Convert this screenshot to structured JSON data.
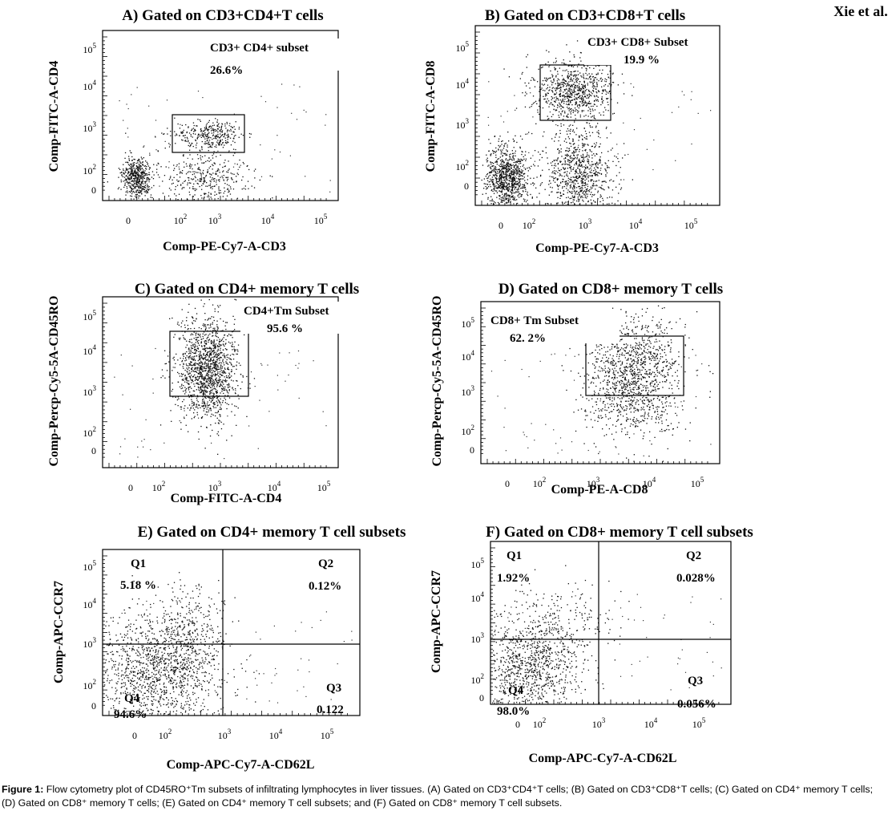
{
  "author": "Xie et al.",
  "caption": {
    "label": "Figure 1:",
    "text": "Flow cytometry plot of CD45RO⁺Tm subsets of infiltrating lymphocytes in liver tissues. (A) Gated on CD3⁺CD4⁺T cells; (B) Gated on CD3⁺CD8⁺T cells; (C) Gated on CD4⁺ memory T cells; (D) Gated on CD8⁺ memory T cells; (E) Gated on CD4⁺ memory T cell subsets; and (F) Gated on CD8⁺ memory T cell subsets."
  },
  "chart_data": [
    {
      "type": "scatter",
      "title": "A) Gated on CD3+CD4+T cells",
      "xlabel": "Comp-PE-Cy7-A-CD3",
      "ylabel": "Comp-FITC-A-CD4",
      "x_ticks": [
        "0",
        "10²",
        "10³",
        "10⁴",
        "10⁵"
      ],
      "y_ticks": [
        "0",
        "10²",
        "10³",
        "10⁴",
        "10⁵"
      ],
      "scale": "biexponential",
      "gates": [
        {
          "shape": "rectangle",
          "name": "CD3+ CD4+ subset",
          "percent": "26.6%"
        }
      ]
    },
    {
      "type": "scatter",
      "title": "B) Gated on CD3+CD8+T cells",
      "xlabel": "Comp-PE-Cy7-A-CD3",
      "ylabel": "Comp-FITC-A-CD8",
      "x_ticks": [
        "0",
        "10²",
        "10³",
        "10⁴",
        "10⁵"
      ],
      "y_ticks": [
        "0",
        "10²",
        "10³",
        "10⁴",
        "10⁵"
      ],
      "scale": "biexponential",
      "gates": [
        {
          "shape": "rectangle",
          "name": "CD3+ CD8+ Subset",
          "percent": "19.9 %"
        }
      ]
    },
    {
      "type": "scatter",
      "title": "C) Gated on CD4+ memory T cells",
      "xlabel": "Comp-FITC-A-CD4",
      "ylabel": "Comp-Percp-Cy5-5A-CD45RO",
      "x_ticks": [
        "0",
        "10²",
        "10³",
        "10⁴",
        "10⁵"
      ],
      "y_ticks": [
        "0",
        "10²",
        "10³",
        "10⁴",
        "10⁵"
      ],
      "scale": "biexponential",
      "gates": [
        {
          "shape": "rectangle",
          "name": "CD4+Tm Subset",
          "percent": "95.6 %"
        }
      ]
    },
    {
      "type": "scatter",
      "title": "D) Gated on CD8+ memory T cells",
      "xlabel": "Comp-PE-A-CD8",
      "ylabel": "Comp-Percp-Cy5-5A-CD45RO",
      "x_ticks": [
        "0",
        "10²",
        "10³",
        "10⁴",
        "10⁵"
      ],
      "y_ticks": [
        "0",
        "10²",
        "10³",
        "10⁴",
        "10⁵"
      ],
      "scale": "biexponential",
      "gates": [
        {
          "shape": "rectangle",
          "name": "CD8+ Tm Subset",
          "percent": "62. 2%"
        }
      ]
    },
    {
      "type": "scatter",
      "title": "E) Gated on CD4+ memory T cell subsets",
      "xlabel": "Comp-APC-Cy7-A-CD62L",
      "ylabel": "Comp-APC-CCR7",
      "x_ticks": [
        "0",
        "10²",
        "10³",
        "10⁴",
        "10⁵"
      ],
      "y_ticks": [
        "0",
        "10²",
        "10³",
        "10⁴",
        "10⁵"
      ],
      "scale": "biexponential",
      "quadrants": [
        {
          "name": "Q1",
          "percent": "5.18 %"
        },
        {
          "name": "Q2",
          "percent": "0.12%"
        },
        {
          "name": "Q3",
          "percent": "0.122"
        },
        {
          "name": "Q4",
          "percent": "94.6%"
        }
      ]
    },
    {
      "type": "scatter",
      "title": "F) Gated on CD8+ memory T cell subsets",
      "xlabel": "Comp-APC-Cy7-A-CD62L",
      "ylabel": "Comp-APC-CCR7",
      "x_ticks": [
        "0",
        "10²",
        "10³",
        "10⁴",
        "10⁵"
      ],
      "y_ticks": [
        "0",
        "10²",
        "10³",
        "10⁴",
        "10⁵"
      ],
      "scale": "biexponential",
      "quadrants": [
        {
          "name": "Q1",
          "percent": "1.92%"
        },
        {
          "name": "Q2",
          "percent": "0.028%"
        },
        {
          "name": "Q3",
          "percent": "0.056%"
        },
        {
          "name": "Q4",
          "percent": "98.0%"
        }
      ]
    }
  ]
}
